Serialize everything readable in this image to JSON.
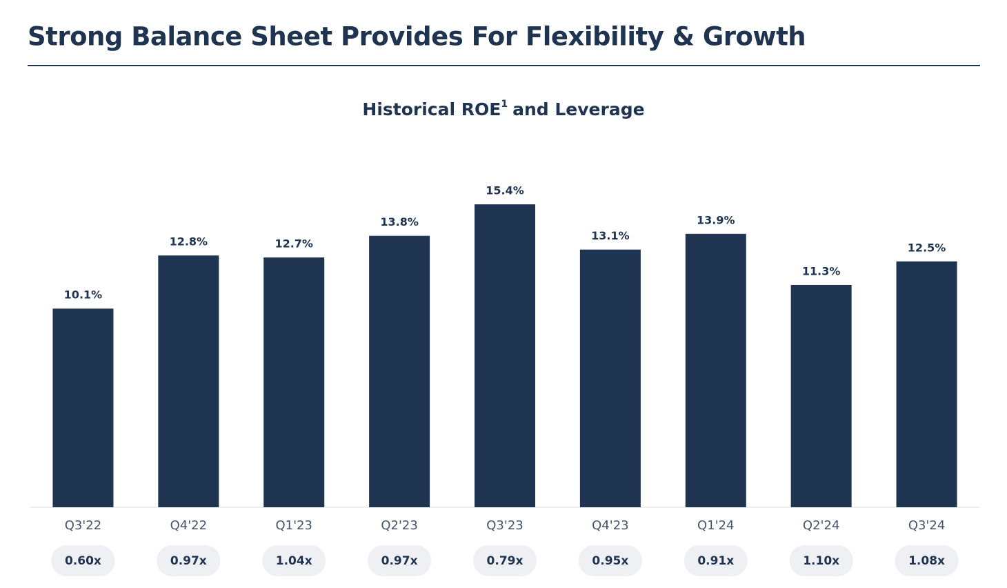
{
  "heading": "Strong Balance Sheet Provides For Flexibility & Growth",
  "chart_data": {
    "type": "bar",
    "title": "Historical ROE",
    "title_note": "1",
    "title_rest": "and Leverage",
    "categories": [
      "Q3'22",
      "Q4'22",
      "Q1'23",
      "Q2'23",
      "Q3'23",
      "Q4'23",
      "Q1'24",
      "Q2'24",
      "Q3'24"
    ],
    "values": [
      10.1,
      12.8,
      12.7,
      13.8,
      15.4,
      13.1,
      13.9,
      11.3,
      12.5
    ],
    "value_labels": [
      "10.1%",
      "12.8%",
      "12.7%",
      "13.8%",
      "15.4%",
      "13.1%",
      "13.9%",
      "11.3%",
      "12.5%"
    ],
    "color": "#1f3450",
    "ylim": [
      0,
      16
    ],
    "leverage": {
      "values": [
        0.6,
        0.97,
        1.04,
        0.97,
        0.79,
        0.95,
        0.91,
        1.1,
        1.08
      ],
      "value_labels": [
        "0.60x",
        "0.97x",
        "1.04x",
        "0.97x",
        "0.79x",
        "0.95x",
        "0.91x",
        "1.10x",
        "1.08x"
      ],
      "color": "#eef0f3"
    }
  }
}
